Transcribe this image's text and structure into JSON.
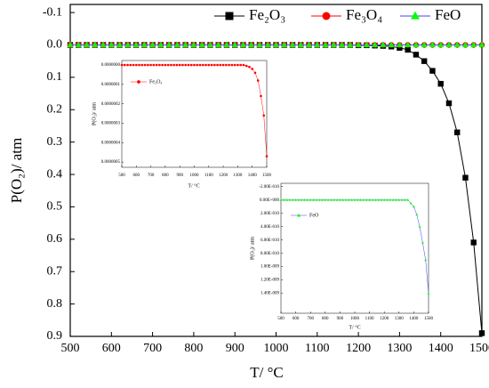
{
  "chart_data": [
    {
      "type": "line",
      "x_label": "T/ °C",
      "y_label": "P(O₂)/ atm",
      "y_inverted": true,
      "xlim": [
        500,
        1500
      ],
      "xticks": [
        500,
        600,
        700,
        800,
        900,
        1000,
        1100,
        1200,
        1300,
        1400,
        1500
      ],
      "ylim": [
        -0.125,
        0.9
      ],
      "yticks": [
        -0.1,
        {
          "value": 0,
          "label": "0.0"
        },
        0.1,
        0.2,
        0.3,
        0.4,
        0.5,
        0.6,
        0.7,
        0.8,
        0.9
      ],
      "legend": "top-right",
      "x": [
        500,
        520,
        540,
        560,
        580,
        600,
        620,
        640,
        660,
        680,
        700,
        720,
        740,
        760,
        780,
        800,
        820,
        840,
        860,
        880,
        900,
        920,
        940,
        960,
        980,
        1000,
        1020,
        1040,
        1060,
        1080,
        1100,
        1120,
        1140,
        1160,
        1180,
        1200,
        1220,
        1240,
        1260,
        1280,
        1300,
        1320,
        1340,
        1360,
        1380,
        1400,
        1420,
        1440,
        1460,
        1480,
        1500
      ],
      "series": [
        {
          "name": "Fe₂O₃",
          "color": "#000000",
          "line_color": "#000000",
          "marker": "square",
          "values": [
            0,
            0,
            0,
            0,
            0,
            0,
            0,
            0,
            0,
            0,
            0,
            0,
            0,
            0,
            0,
            0,
            0,
            0,
            0,
            0,
            0,
            0,
            0,
            0,
            0,
            0,
            0,
            0,
            0,
            0,
            0,
            0,
            0,
            0,
            0,
            0.001,
            0.001,
            0.002,
            0.003,
            0.005,
            0.009,
            0.015,
            0.03,
            0.05,
            0.08,
            0.12,
            0.18,
            0.27,
            0.41,
            0.61,
            0.89
          ]
        },
        {
          "name": "Fe₃O₄",
          "color": "#ff0000",
          "line_color": "#ff0000",
          "marker": "circle",
          "values": [
            0,
            0,
            0,
            0,
            0,
            0,
            0,
            0,
            0,
            0,
            0,
            0,
            0,
            0,
            0,
            0,
            0,
            0,
            0,
            0,
            0,
            0,
            0,
            0,
            0,
            0,
            0,
            0,
            0,
            0,
            0,
            0,
            0,
            0,
            0,
            0,
            0,
            0,
            0,
            0,
            0,
            0,
            0,
            0,
            0,
            0,
            0,
            0,
            0,
            0,
            0
          ]
        },
        {
          "name": "FeO",
          "color": "#00ff00",
          "line_color": "#4040ff",
          "marker": "triangle",
          "values": [
            0,
            0,
            0,
            0,
            0,
            0,
            0,
            0,
            0,
            0,
            0,
            0,
            0,
            0,
            0,
            0,
            0,
            0,
            0,
            0,
            0,
            0,
            0,
            0,
            0,
            0,
            0,
            0,
            0,
            0,
            0,
            0,
            0,
            0,
            0,
            0,
            0,
            0,
            0,
            0,
            0,
            0,
            0,
            0,
            0,
            0,
            0,
            0,
            0,
            0,
            0
          ]
        }
      ]
    },
    {
      "type": "line",
      "x_label": "T/ °C",
      "y_label": "P(O₂)/ atm",
      "y_inverted": true,
      "xlim": [
        500,
        1500
      ],
      "xticks": [
        500,
        600,
        700,
        800,
        900,
        1000,
        1100,
        1200,
        1300,
        1400,
        1500
      ],
      "ylim": [
        -2.3e-08,
        5.27e-07
      ],
      "yticks": [
        {
          "value": 0,
          "label": "0.0000000"
        },
        {
          "value": 1e-07,
          "label": "0.0000001"
        },
        {
          "value": 2e-07,
          "label": "0.0000002"
        },
        {
          "value": 3e-07,
          "label": "0.0000003"
        },
        {
          "value": 4e-07,
          "label": "0.0000004"
        },
        {
          "value": 5e-07,
          "label": "0.0000005"
        }
      ],
      "legend": "top-left",
      "x": [
        500,
        520,
        540,
        560,
        580,
        600,
        620,
        640,
        660,
        680,
        700,
        720,
        740,
        760,
        780,
        800,
        820,
        840,
        860,
        880,
        900,
        920,
        940,
        960,
        980,
        1000,
        1020,
        1040,
        1060,
        1080,
        1100,
        1120,
        1140,
        1160,
        1180,
        1200,
        1220,
        1240,
        1260,
        1280,
        1300,
        1320,
        1340,
        1360,
        1380,
        1400,
        1420,
        1440,
        1460,
        1480,
        1500
      ],
      "series": [
        {
          "name": "Fe₃O₄",
          "color": "#ff0000",
          "line_color": "#ff0000",
          "marker": "circle",
          "values": [
            0,
            0,
            0,
            0,
            0,
            0,
            0,
            0,
            0,
            0,
            0,
            0,
            0,
            0,
            0,
            0,
            0,
            0,
            0,
            0,
            0,
            0,
            0,
            0,
            0,
            0,
            0,
            0,
            0,
            0,
            0,
            0,
            0,
            0,
            0,
            0,
            0,
            0,
            0,
            0,
            0,
            0,
            0,
            5e-09,
            1e-08,
            2e-08,
            4e-08,
            8e-08,
            1.6e-07,
            2.6e-07,
            4.7e-07
          ]
        }
      ]
    },
    {
      "type": "line",
      "x_label": "T/ °C",
      "y_label": "P(O₂)/ atm",
      "y_inverted": true,
      "xlim": [
        500,
        1500
      ],
      "xticks": [
        500,
        600,
        700,
        800,
        900,
        1000,
        1100,
        1200,
        1300,
        1400,
        1500
      ],
      "ylim": [
        -2.5e-10,
        1.7e-09
      ],
      "yticks": [
        {
          "value": -2e-10,
          "label": "-2.00E-010"
        },
        {
          "value": 0,
          "label": "0.00E+000"
        },
        {
          "value": 2e-10,
          "label": "2.00E-010"
        },
        {
          "value": 4e-10,
          "label": "4.00E-010"
        },
        {
          "value": 6e-10,
          "label": "6.00E-010"
        },
        {
          "value": 8e-10,
          "label": "8.00E-010"
        },
        {
          "value": 1e-09,
          "label": "1.00E-009"
        },
        {
          "value": 1.2e-09,
          "label": "1.20E-009"
        },
        {
          "value": 1.4e-09,
          "label": "1.40E-009"
        }
      ],
      "legend": "top-left",
      "x": [
        500,
        520,
        540,
        560,
        580,
        600,
        620,
        640,
        660,
        680,
        700,
        720,
        740,
        760,
        780,
        800,
        820,
        840,
        860,
        880,
        900,
        920,
        940,
        960,
        980,
        1000,
        1020,
        1040,
        1060,
        1080,
        1100,
        1120,
        1140,
        1160,
        1180,
        1200,
        1220,
        1240,
        1260,
        1280,
        1300,
        1320,
        1340,
        1360,
        1380,
        1400,
        1420,
        1440,
        1460,
        1480,
        1500
      ],
      "series": [
        {
          "name": "FeO",
          "color": "#00ff00",
          "line_color": "#4040ff",
          "marker": "triangle",
          "values": [
            0,
            0,
            0,
            0,
            0,
            0,
            0,
            0,
            0,
            0,
            0,
            0,
            0,
            0,
            0,
            0,
            0,
            0,
            0,
            0,
            0,
            0,
            0,
            0,
            0,
            0,
            0,
            0,
            0,
            0,
            0,
            0,
            0,
            0,
            0,
            0,
            0,
            0,
            0,
            0,
            0,
            0,
            0,
            0,
            5e-11,
            1e-10,
            2.2e-10,
            4e-10,
            6.4e-10,
            9e-10,
            1.4e-09
          ]
        }
      ]
    }
  ]
}
